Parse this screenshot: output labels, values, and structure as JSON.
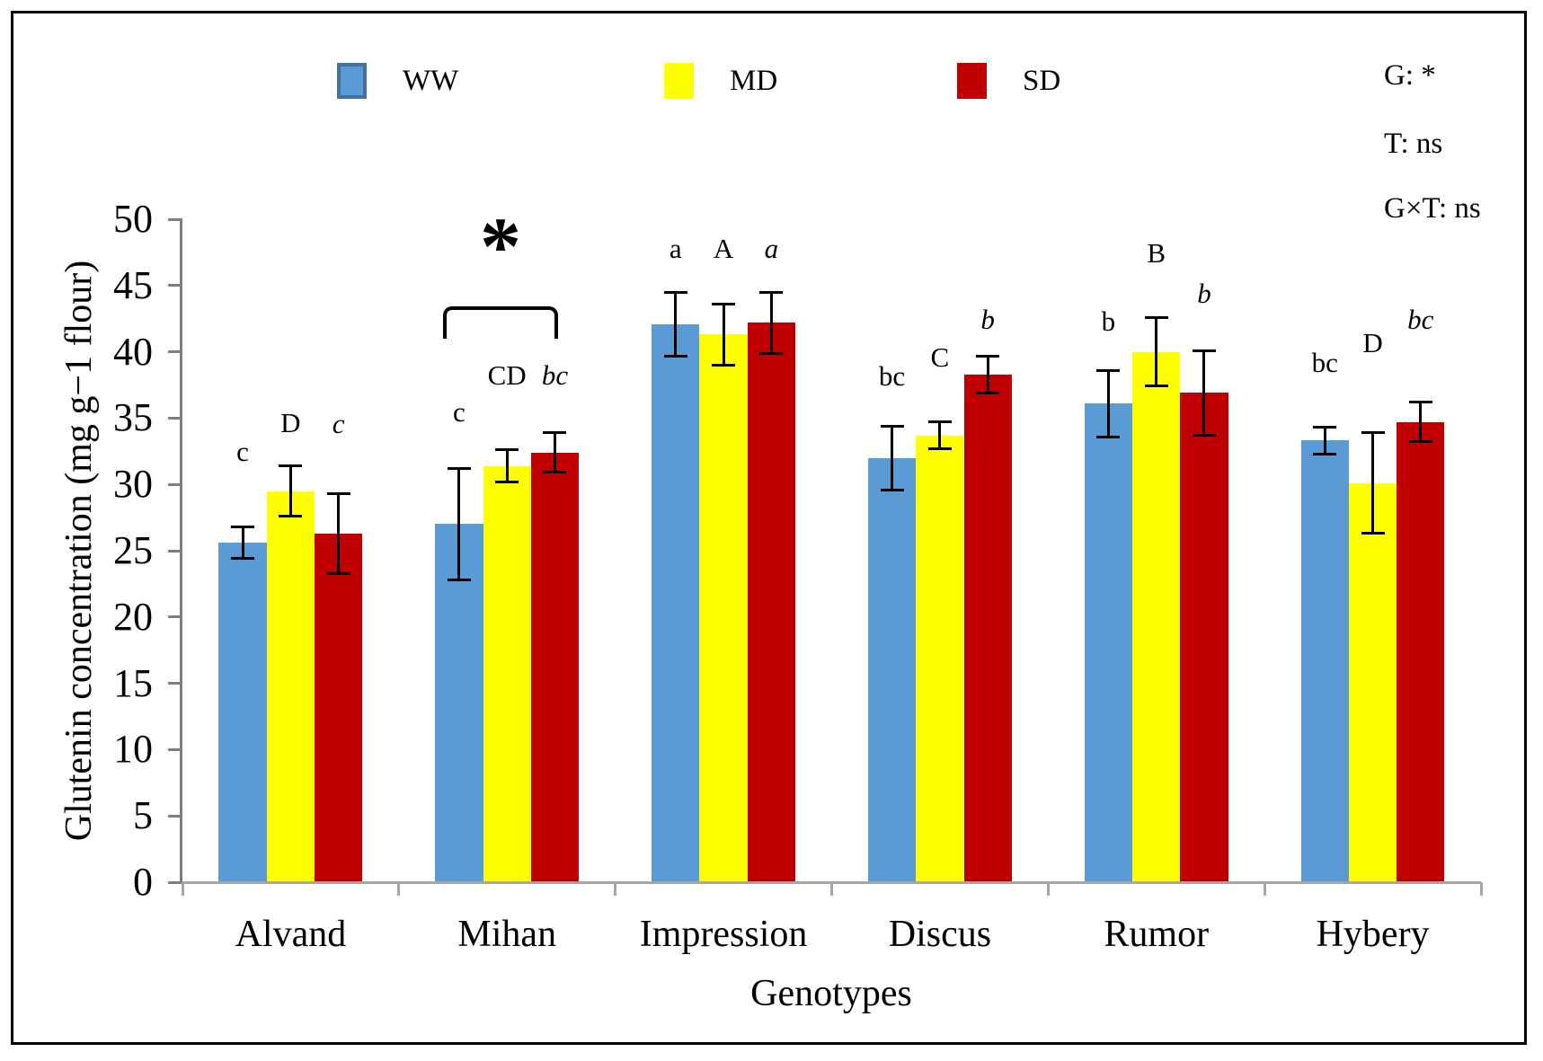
{
  "chart_data": {
    "type": "bar",
    "xlabel": "Genotypes",
    "ylabel": "Glutenin concentration (mg g−1 flour)",
    "ylim": [
      0,
      50
    ],
    "yticks": [
      0,
      5,
      10,
      15,
      20,
      25,
      30,
      35,
      40,
      45,
      50
    ],
    "grid": false,
    "legend_position": "top",
    "categories": [
      "Alvand",
      "Mihan",
      "Impression",
      "Discus",
      "Rumor",
      "Hybery"
    ],
    "series": [
      {
        "name": "WW",
        "color": "#5B9BD5",
        "values": [
          25.6,
          27.0,
          42.1,
          32.0,
          36.1,
          33.3
        ],
        "errors": [
          1.2,
          4.2,
          2.4,
          2.4,
          2.5,
          1.0
        ],
        "letters": [
          "c",
          "c",
          "a",
          "bc",
          "b",
          "bc"
        ],
        "letter_v": [
          31.7,
          34.7,
          47.0,
          37.4,
          41.5,
          38.4
        ],
        "letter_style": "normal"
      },
      {
        "name": "MD",
        "color": "#FFFF00",
        "values": [
          29.5,
          31.4,
          41.3,
          33.7,
          40.0,
          30.1
        ],
        "errors": [
          1.9,
          1.2,
          2.3,
          1.0,
          2.6,
          3.8
        ],
        "letters": [
          "D",
          "CD",
          "A",
          "C",
          "B",
          "D"
        ],
        "letter_v": [
          33.9,
          37.5,
          47.0,
          38.8,
          46.7,
          39.9
        ],
        "letter_style": "normal"
      },
      {
        "name": "SD",
        "color": "#C00000",
        "values": [
          26.3,
          32.4,
          42.2,
          38.3,
          36.9,
          34.7
        ],
        "errors": [
          3.0,
          1.5,
          2.3,
          1.4,
          3.2,
          1.5
        ],
        "letters": [
          "c",
          "bc",
          "a",
          "b",
          "b",
          "bc"
        ],
        "letter_v": [
          33.8,
          37.5,
          47.0,
          41.7,
          43.6,
          41.7
        ],
        "letter_style": "italic"
      }
    ],
    "annotations": {
      "significance_bracket": {
        "category": "Mihan",
        "label": "*"
      }
    }
  },
  "stats": [
    "G: *",
    "T: ns",
    "G×T: ns"
  ]
}
